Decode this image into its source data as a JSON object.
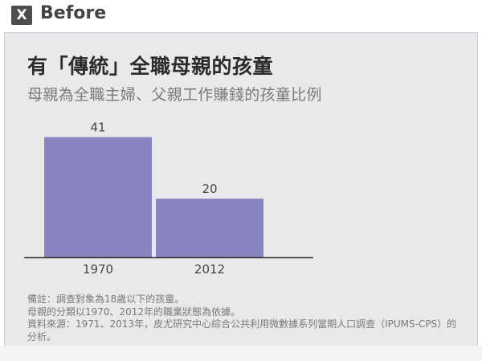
{
  "header": {
    "badge": "X",
    "label": "Before"
  },
  "chart_data": {
    "type": "bar",
    "title": "有「傳統」全職母親的孩童",
    "subtitle": "母親為全職主婦、父親工作賺錢的孩童比例",
    "categories": [
      "1970",
      "2012"
    ],
    "values": [
      41,
      20
    ],
    "ylim": [
      0,
      45
    ],
    "bar_color": "#8884c0",
    "grid": false
  },
  "notes": [
    "備註：調查對象為18歲以下的孩童。",
    "母親的分類以1970、2012年的職業狀態為依據。",
    "資料來源：1971、2013年，皮尤研究中心綜合公共利用微數據系列當期人口調查（IPUMS-CPS）的分析。"
  ]
}
